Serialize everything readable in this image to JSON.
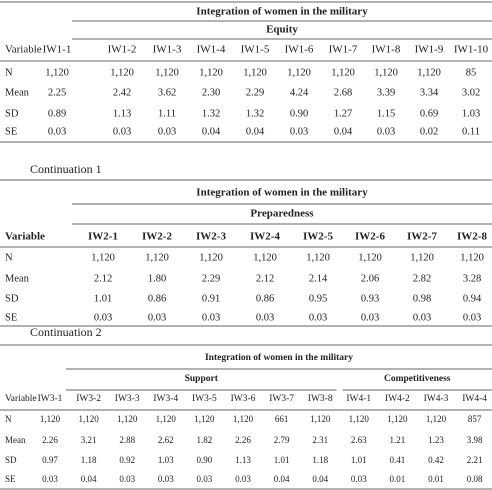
{
  "tables": [
    {
      "title": "Integration of women in the military",
      "groups": [
        "Equity"
      ],
      "header": [
        "Variable",
        "IW1-1",
        "IW1-2",
        "IW1-3",
        "IW1-4",
        "IW1-5",
        "IW1-6",
        "IW1-7",
        "IW1-8",
        "IW1-9",
        "IW1-10"
      ],
      "rows": [
        [
          "N",
          "1,120",
          "1,120",
          "1,120",
          "1,120",
          "1,120",
          "1,120",
          "1,120",
          "1,120",
          "1,120",
          "85"
        ],
        [
          "Mean",
          "2.25",
          "2.42",
          "3.62",
          "2.30",
          "2.29",
          "4.24",
          "2.68",
          "3.39",
          "3.34",
          "3.02"
        ],
        [
          "SD",
          "0.89",
          "1.13",
          "1.11",
          "1.32",
          "1.32",
          "0.90",
          "1.27",
          "1.15",
          "0.69",
          "1.03"
        ],
        [
          "SE",
          "0.03",
          "0.03",
          "0.03",
          "0.04",
          "0.04",
          "0.03",
          "0.04",
          "0.03",
          "0.02",
          "0.11"
        ]
      ]
    },
    {
      "caption": "Continuation 1",
      "title": "Integration of women in the military",
      "groups": [
        "Preparedness"
      ],
      "header": [
        "Variable",
        "IW2-1",
        "IW2-2",
        "IW2-3",
        "IW2-4",
        "IW2-5",
        "IW2-6",
        "IW2-7",
        "IW2-8"
      ],
      "rows": [
        [
          "N",
          "1,120",
          "1,120",
          "1,120",
          "1,120",
          "1,120",
          "1,120",
          "1,120",
          "1,120"
        ],
        [
          "Mean",
          "2.12",
          "1.80",
          "2.29",
          "2.12",
          "2.14",
          "2.06",
          "2.82",
          "3.28"
        ],
        [
          "SD",
          "1.01",
          "0.86",
          "0.91",
          "0.86",
          "0.95",
          "0.93",
          "0.98",
          "0.94"
        ],
        [
          "SE",
          "0.03",
          "0.03",
          "0.03",
          "0.03",
          "0.03",
          "0.03",
          "0.03",
          "0.03"
        ]
      ]
    },
    {
      "caption": "Continuation 2",
      "title": "Integration of women in the military",
      "groups": [
        "Support",
        "Competitiveness"
      ],
      "header": [
        "Variable",
        "IW3-1",
        "IW3-2",
        "IW3-3",
        "IW3-4",
        "IW3-5",
        "IW3-6",
        "IW3-7",
        "IW3-8",
        "IW4-1",
        "IW4-2",
        "IW4-3",
        "IW4-4"
      ],
      "rows": [
        [
          "N",
          "1,120",
          "1,120",
          "1,120",
          "1,120",
          "1,120",
          "1,120",
          "661",
          "1,120",
          "1,120",
          "1,120",
          "1,120",
          "857"
        ],
        [
          "Mean",
          "2.26",
          "3.21",
          "2.88",
          "2.62",
          "1.82",
          "2.26",
          "2.79",
          "2.31",
          "2.63",
          "1.21",
          "1.23",
          "3.98"
        ],
        [
          "SD",
          "0.97",
          "1.18",
          "0.92",
          "1.03",
          "0.90",
          "1.13",
          "1.01",
          "1.18",
          "1.01",
          "0.41",
          "0.42",
          "2.21"
        ],
        [
          "SE",
          "0.03",
          "0.04",
          "0.03",
          "0.03",
          "0.03",
          "0.03",
          "0.04",
          "0.04",
          "0.03",
          "0.01",
          "0.01",
          "0.08"
        ]
      ]
    }
  ]
}
